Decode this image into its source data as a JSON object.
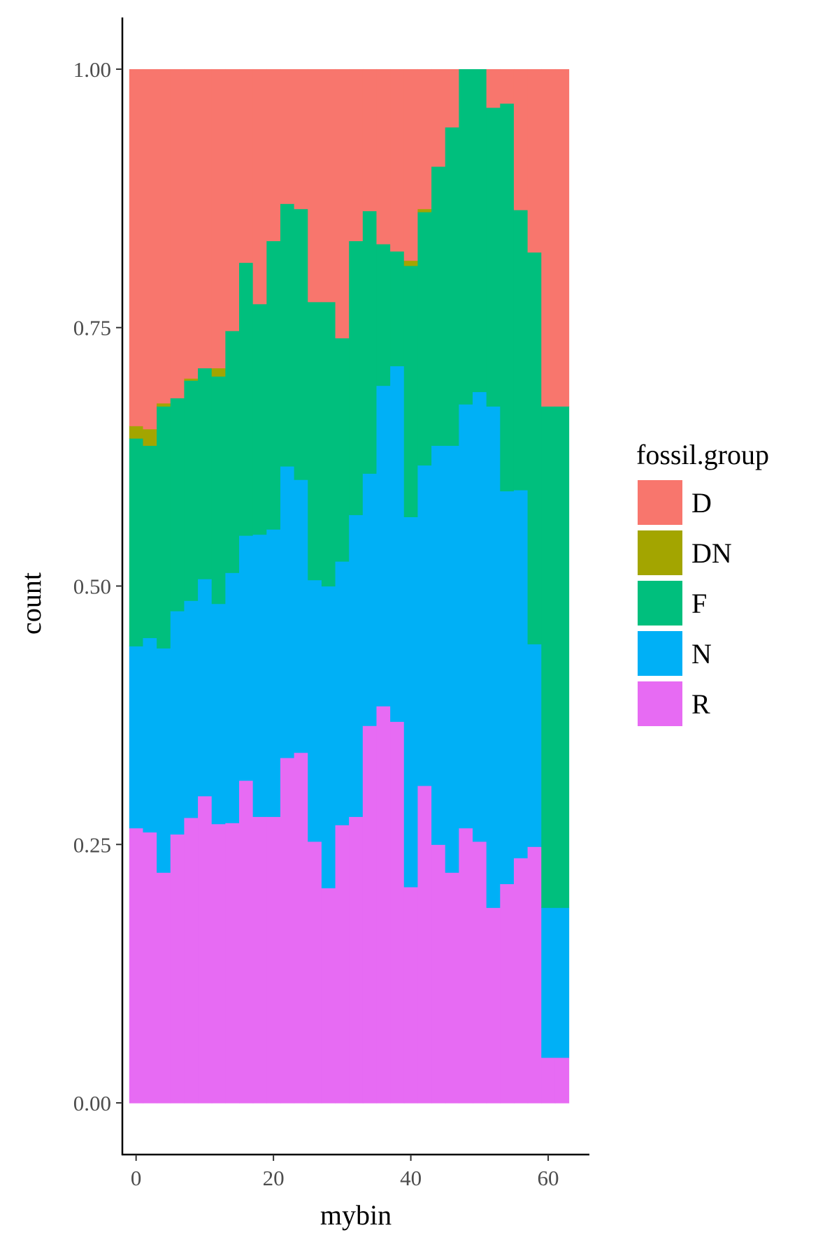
{
  "chart_data": {
    "type": "bar",
    "subtype": "stacked-fill-histogram",
    "title": "",
    "xlabel": "mybin",
    "ylabel": "count",
    "xlim": [
      -2,
      66
    ],
    "ylim": [
      -0.05,
      1.05
    ],
    "xticks": [
      0,
      20,
      40,
      60
    ],
    "xtick_labels": [
      "0",
      "20",
      "40",
      "60"
    ],
    "yticks": [
      0,
      0.25,
      0.5,
      0.75,
      1.0
    ],
    "ytick_labels": [
      "0.00",
      "0.25",
      "0.50",
      "0.75",
      "1.00"
    ],
    "bin_width": 2,
    "x": [
      0,
      2,
      4,
      6,
      8,
      10,
      12,
      14,
      16,
      18,
      20,
      22,
      24,
      26,
      28,
      30,
      32,
      34,
      36,
      38,
      40,
      42,
      44,
      46,
      48,
      50,
      52,
      54,
      56,
      58,
      60,
      62
    ],
    "grid": false,
    "legend_position": "right",
    "legend_title": "fossil.group",
    "stack_order": [
      "R",
      "N",
      "F",
      "DN",
      "D"
    ],
    "series": [
      {
        "name": "D",
        "color": "#F8766D",
        "values": [
          0.345,
          0.348,
          0.323,
          0.318,
          0.299,
          0.289,
          0.289,
          0.253,
          0.187,
          0.227,
          0.166,
          0.13,
          0.135,
          0.225,
          0.225,
          0.26,
          0.166,
          0.137,
          0.169,
          0.176,
          0.185,
          0.135,
          0.094,
          0.056,
          0.0,
          0.0,
          0.037,
          0.033,
          0.136,
          0.177,
          0.326,
          0.326
        ]
      },
      {
        "name": "DN",
        "color": "#A3A500",
        "values": [
          0.012,
          0.016,
          0.003,
          0.0,
          0.002,
          0.0,
          0.008,
          0.0,
          0.0,
          0.0,
          0.0,
          0.0,
          0.0,
          0.0,
          0.0,
          0.0,
          0.0,
          0.0,
          0.0,
          0.0,
          0.005,
          0.003,
          0.0,
          0.0,
          0.0,
          0.0,
          0.0,
          0.0,
          0.0,
          0.0,
          0.0,
          0.0
        ]
      },
      {
        "name": "F",
        "color": "#00BF7D",
        "values": [
          0.201,
          0.186,
          0.234,
          0.206,
          0.213,
          0.204,
          0.22,
          0.234,
          0.264,
          0.223,
          0.279,
          0.254,
          0.262,
          0.269,
          0.275,
          0.216,
          0.265,
          0.254,
          0.137,
          0.111,
          0.243,
          0.245,
          0.27,
          0.308,
          0.324,
          0.312,
          0.289,
          0.375,
          0.271,
          0.379,
          0.485,
          0.485
        ]
      },
      {
        "name": "N",
        "color": "#00B0F6",
        "values": [
          0.176,
          0.188,
          0.217,
          0.216,
          0.21,
          0.21,
          0.213,
          0.242,
          0.237,
          0.273,
          0.278,
          0.282,
          0.264,
          0.253,
          0.292,
          0.255,
          0.292,
          0.244,
          0.31,
          0.344,
          0.358,
          0.31,
          0.386,
          0.413,
          0.41,
          0.435,
          0.485,
          0.38,
          0.356,
          0.196,
          0.145,
          0.145
        ]
      },
      {
        "name": "R",
        "color": "#E76BF3",
        "values": [
          0.266,
          0.262,
          0.223,
          0.26,
          0.276,
          0.297,
          0.27,
          0.271,
          0.312,
          0.277,
          0.277,
          0.334,
          0.339,
          0.253,
          0.208,
          0.269,
          0.277,
          0.365,
          0.384,
          0.369,
          0.209,
          0.307,
          0.25,
          0.223,
          0.266,
          0.253,
          0.189,
          0.212,
          0.237,
          0.248,
          0.044,
          0.044
        ]
      }
    ]
  }
}
